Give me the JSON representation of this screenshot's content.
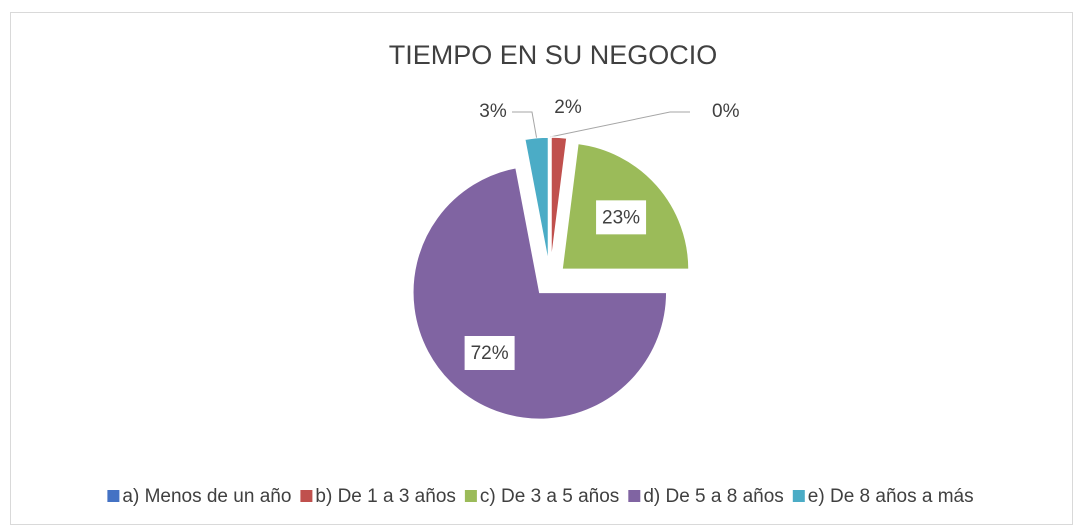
{
  "chart_data": {
    "type": "pie",
    "title": "TIEMPO EN SU NEGOCIO",
    "categories": [
      "a) Menos de un año",
      "b) De 1 a 3 años",
      "c) De 3 a 5 años",
      "d) De 5 a 8 años",
      "e) De 8 años a más"
    ],
    "values": [
      0,
      2,
      23,
      72,
      3
    ],
    "value_labels": [
      "0%",
      "2%",
      "23%",
      "72%",
      "3%"
    ],
    "colors": [
      "#4472c4",
      "#c0504d",
      "#9bbb59",
      "#8064a2",
      "#4bacc6"
    ],
    "legend": "bottom"
  }
}
